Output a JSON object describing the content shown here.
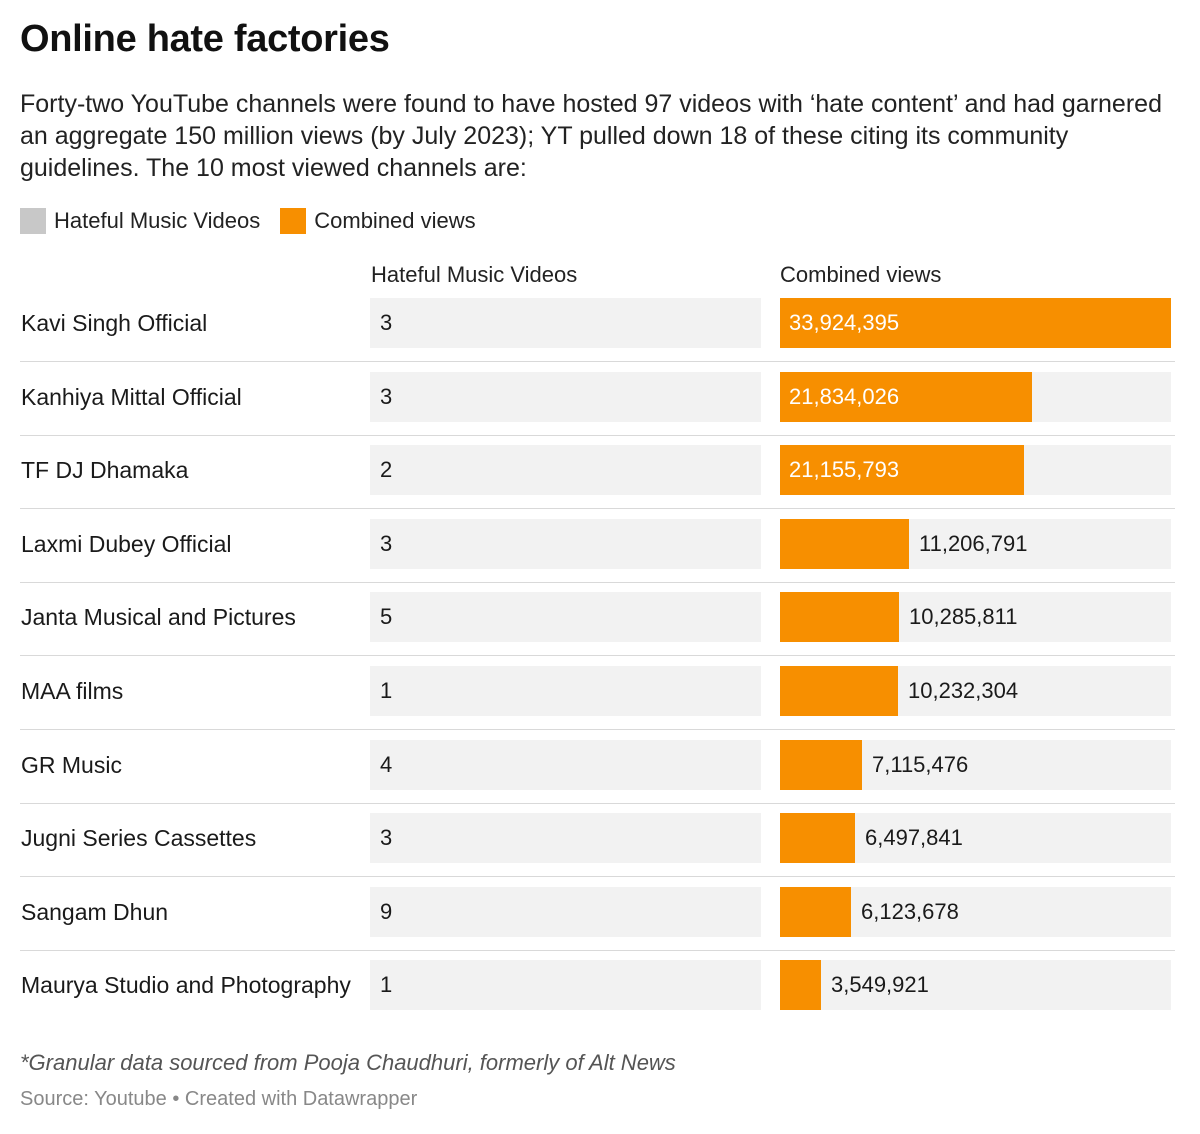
{
  "title": "Online hate factories",
  "subtitle": "Forty-two YouTube channels were found to have hosted 97 videos with ‘hate content’ and had garnered an aggregate 150 million views (by July 2023); YT pulled down 18 of these citing its community guidelines. The 10 most viewed channels are:",
  "legend": [
    {
      "label": "Hateful Music Videos",
      "color": "#c8c8c8"
    },
    {
      "label": "Combined views",
      "color": "#f78f00"
    }
  ],
  "columns": {
    "videos": "Hateful Music Videos",
    "views": "Combined views"
  },
  "colors": {
    "bar": "#f78f00",
    "cell_bg": "#f2f2f2"
  },
  "chart_data": {
    "type": "table",
    "columns": [
      "Hateful Music Videos",
      "Combined views"
    ],
    "rows": [
      {
        "name": "Kavi Singh Official",
        "videos": "3",
        "views": 33924395,
        "views_label": "33,924,395"
      },
      {
        "name": "Kanhiya Mittal Official",
        "videos": "3",
        "views": 21834026,
        "views_label": "21,834,026"
      },
      {
        "name": "TF DJ Dhamaka",
        "videos": "2",
        "views": 21155793,
        "views_label": "21,155,793"
      },
      {
        "name": "Laxmi Dubey Official",
        "videos": "3",
        "views": 11206791,
        "views_label": "11,206,791"
      },
      {
        "name": "Janta Musical and Pictures",
        "videos": "5",
        "views": 10285811,
        "views_label": "10,285,811"
      },
      {
        "name": "MAA films",
        "videos": "1",
        "views": 10232304,
        "views_label": "10,232,304"
      },
      {
        "name": "GR Music",
        "videos": "4",
        "views": 7115476,
        "views_label": "7,115,476"
      },
      {
        "name": "Jugni Series Cassettes",
        "videos": "3",
        "views": 6497841,
        "views_label": "6,497,841"
      },
      {
        "name": "Sangam Dhun",
        "videos": "9",
        "views": 6123678,
        "views_label": "6,123,678"
      },
      {
        "name": "Maurya Studio and Photography",
        "videos": "1",
        "views": 3549921,
        "views_label": "3,549,921"
      }
    ]
  },
  "notes": "*Granular data sourced from Pooja Chaudhuri, formerly of Alt News",
  "source": "Source: Youtube • Created with Datawrapper"
}
